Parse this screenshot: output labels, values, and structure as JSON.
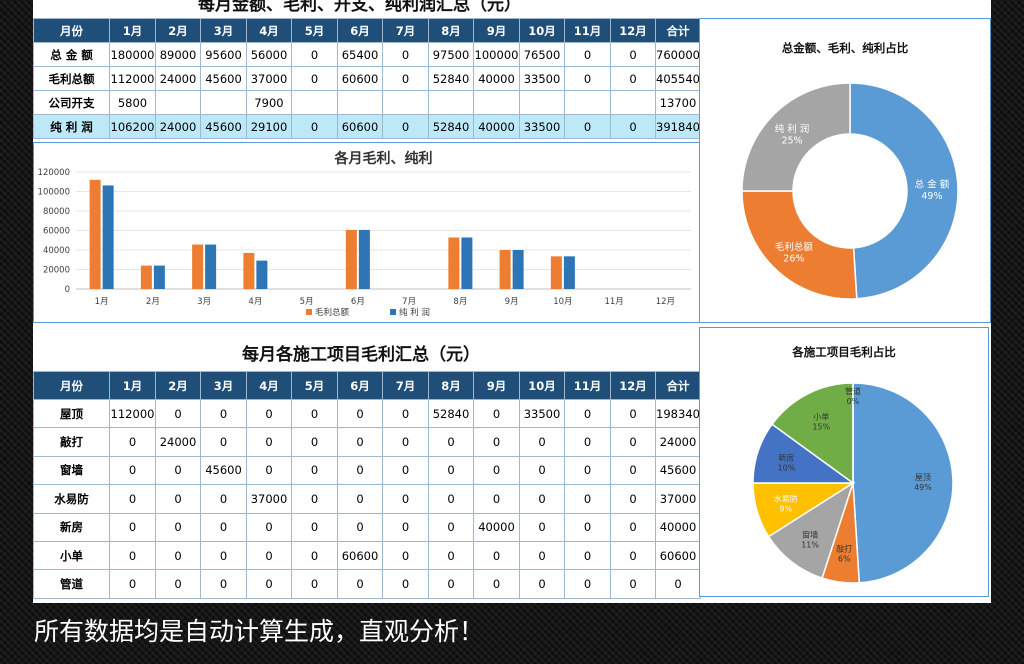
{
  "summary": {
    "title": "每月金额、毛利、开支、纯利润汇总（元）",
    "headers": [
      "月份",
      "1月",
      "2月",
      "3月",
      "4月",
      "5月",
      "6月",
      "7月",
      "8月",
      "9月",
      "10月",
      "11月",
      "12月",
      "合计"
    ],
    "rows": [
      [
        "总 金 额",
        "180000",
        "89000",
        "95600",
        "56000",
        "0",
        "65400",
        "0",
        "97500",
        "100000",
        "76500",
        "0",
        "0",
        "760000"
      ],
      [
        "毛利总额",
        "112000",
        "24000",
        "45600",
        "37000",
        "0",
        "60600",
        "0",
        "52840",
        "40000",
        "33500",
        "0",
        "0",
        "405540"
      ],
      [
        "公司开支",
        "5800",
        "",
        "",
        "7900",
        "",
        "",
        "",
        "",
        "",
        "",
        "",
        "",
        "13700"
      ],
      [
        "纯 利 润",
        "106200",
        "24000",
        "45600",
        "29100",
        "0",
        "60600",
        "0",
        "52840",
        "40000",
        "33500",
        "0",
        "0",
        "391840"
      ]
    ]
  },
  "projects": {
    "title": "每月各施工项目毛利汇总（元）",
    "headers": [
      "月份",
      "1月",
      "2月",
      "3月",
      "4月",
      "5月",
      "6月",
      "7月",
      "8月",
      "9月",
      "10月",
      "11月",
      "12月",
      "合计"
    ],
    "rows": [
      [
        "屋顶",
        "112000",
        "0",
        "0",
        "0",
        "0",
        "0",
        "0",
        "52840",
        "0",
        "33500",
        "0",
        "0",
        "198340"
      ],
      [
        "敲打",
        "0",
        "24000",
        "0",
        "0",
        "0",
        "0",
        "0",
        "0",
        "0",
        "0",
        "0",
        "0",
        "24000"
      ],
      [
        "窗墙",
        "0",
        "0",
        "45600",
        "0",
        "0",
        "0",
        "0",
        "0",
        "0",
        "0",
        "0",
        "0",
        "45600"
      ],
      [
        "水易防",
        "0",
        "0",
        "0",
        "37000",
        "0",
        "0",
        "0",
        "0",
        "0",
        "0",
        "0",
        "0",
        "37000"
      ],
      [
        "新房",
        "0",
        "0",
        "0",
        "0",
        "0",
        "0",
        "0",
        "0",
        "40000",
        "0",
        "0",
        "0",
        "40000"
      ],
      [
        "小单",
        "0",
        "0",
        "0",
        "0",
        "0",
        "60600",
        "0",
        "0",
        "0",
        "0",
        "0",
        "0",
        "60600"
      ],
      [
        "管道",
        "0",
        "0",
        "0",
        "0",
        "0",
        "0",
        "0",
        "0",
        "0",
        "0",
        "0",
        "0",
        "0"
      ]
    ]
  },
  "footer": "所有数据均是自动计算生成，直观分析！",
  "chart_data": [
    {
      "type": "bar",
      "title": "各月毛利、纯利",
      "categories": [
        "1月",
        "2月",
        "3月",
        "4月",
        "5月",
        "6月",
        "7月",
        "8月",
        "9月",
        "10月",
        "11月",
        "12月"
      ],
      "series": [
        {
          "name": "毛利总额",
          "color": "#ed7d31",
          "values": [
            112000,
            24000,
            45600,
            37000,
            0,
            60600,
            0,
            52840,
            40000,
            33500,
            0,
            0
          ]
        },
        {
          "name": "纯 利 润",
          "color": "#2e75b6",
          "values": [
            106200,
            24000,
            45600,
            29100,
            0,
            60600,
            0,
            52840,
            40000,
            33500,
            0,
            0
          ]
        }
      ],
      "ylim": [
        0,
        120000
      ],
      "yticks": [
        "0",
        "20000",
        "40000",
        "60000",
        "80000",
        "100000",
        "120000"
      ],
      "grid": true,
      "legend": "bottom"
    },
    {
      "type": "pie",
      "title": "总金额、毛利、纯利占比",
      "donut": true,
      "slices": [
        {
          "label": "总 金 额",
          "pct": "49%",
          "value": 49,
          "color": "#5b9bd5"
        },
        {
          "label": "毛利总额",
          "pct": "26%",
          "value": 26,
          "color": "#ed7d31"
        },
        {
          "label": "纯 利 润",
          "pct": "25%",
          "value": 25,
          "color": "#a5a5a5"
        }
      ]
    },
    {
      "type": "pie",
      "title": "各施工项目毛利占比",
      "slices": [
        {
          "label": "屋顶",
          "pct": "49%",
          "value": 49,
          "color": "#5b9bd5"
        },
        {
          "label": "敲打",
          "pct": "6%",
          "value": 6,
          "color": "#ed7d31"
        },
        {
          "label": "窗墙",
          "pct": "11%",
          "value": 11,
          "color": "#a5a5a5"
        },
        {
          "label": "水易防",
          "pct": "9%",
          "value": 9,
          "color": "#ffc000"
        },
        {
          "label": "新房",
          "pct": "10%",
          "value": 10,
          "color": "#4472c4"
        },
        {
          "label": "小单",
          "pct": "15%",
          "value": 15,
          "color": "#70ad47"
        },
        {
          "label": "管道",
          "pct": "0%",
          "value": 0.0001,
          "color": "#264478"
        }
      ]
    }
  ]
}
